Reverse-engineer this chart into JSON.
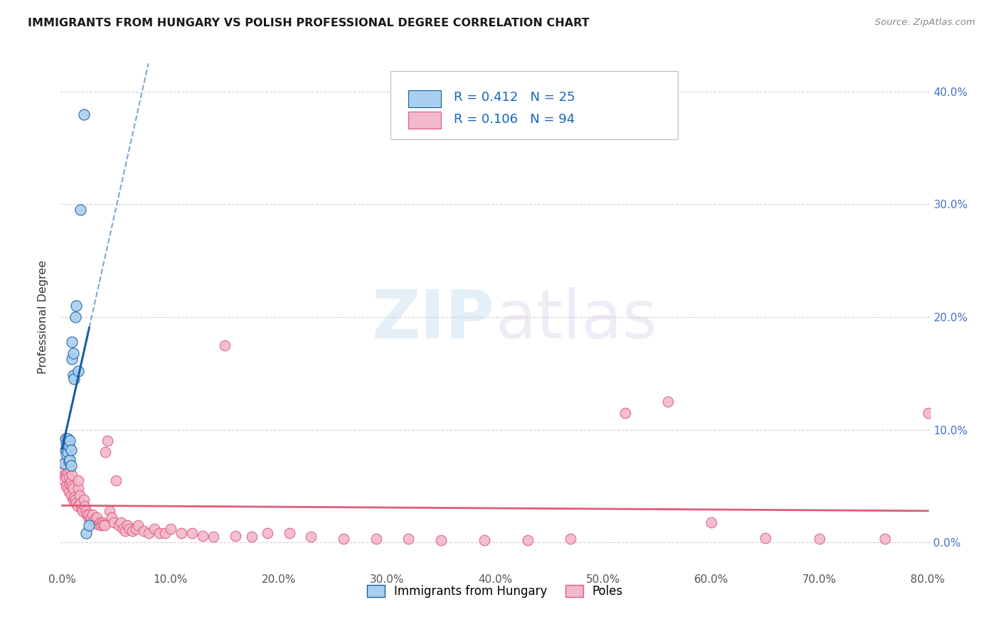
{
  "title": "IMMIGRANTS FROM HUNGARY VS POLISH PROFESSIONAL DEGREE CORRELATION CHART",
  "source": "Source: ZipAtlas.com",
  "ylabel": "Professional Degree",
  "legend_label1": "Immigrants from Hungary",
  "legend_label2": "Poles",
  "R1": 0.412,
  "N1": 25,
  "R2": 0.106,
  "N2": 94,
  "xlim": [
    -0.002,
    0.802
  ],
  "ylim": [
    -0.025,
    0.425
  ],
  "xticks": [
    0.0,
    0.1,
    0.2,
    0.3,
    0.4,
    0.5,
    0.6,
    0.7,
    0.8
  ],
  "yticks": [
    0.0,
    0.1,
    0.2,
    0.3,
    0.4
  ],
  "color_hungary": "#A8CFEF",
  "color_poles": "#F2B8CB",
  "color_trendline_hungary": "#1A5DA6",
  "color_trendline_poles": "#E05A7A",
  "background_color": "#FFFFFF",
  "hungary_x": [
    0.002,
    0.003,
    0.003,
    0.004,
    0.004,
    0.005,
    0.005,
    0.006,
    0.006,
    0.007,
    0.007,
    0.008,
    0.008,
    0.009,
    0.009,
    0.01,
    0.01,
    0.011,
    0.012,
    0.013,
    0.015,
    0.017,
    0.02,
    0.022,
    0.025
  ],
  "hungary_y": [
    0.07,
    0.082,
    0.092,
    0.078,
    0.088,
    0.08,
    0.092,
    0.072,
    0.085,
    0.073,
    0.09,
    0.068,
    0.082,
    0.163,
    0.178,
    0.148,
    0.168,
    0.145,
    0.2,
    0.21,
    0.152,
    0.295,
    0.38,
    0.008,
    0.015
  ],
  "poles_x": [
    0.001,
    0.001,
    0.002,
    0.002,
    0.003,
    0.003,
    0.004,
    0.004,
    0.005,
    0.005,
    0.006,
    0.006,
    0.007,
    0.007,
    0.008,
    0.008,
    0.009,
    0.009,
    0.01,
    0.01,
    0.011,
    0.012,
    0.013,
    0.014,
    0.015,
    0.015,
    0.016,
    0.017,
    0.018,
    0.019,
    0.02,
    0.021,
    0.022,
    0.023,
    0.024,
    0.025,
    0.026,
    0.027,
    0.028,
    0.029,
    0.03,
    0.031,
    0.032,
    0.033,
    0.035,
    0.036,
    0.037,
    0.038,
    0.039,
    0.04,
    0.042,
    0.044,
    0.046,
    0.048,
    0.05,
    0.052,
    0.054,
    0.056,
    0.058,
    0.06,
    0.062,
    0.065,
    0.068,
    0.07,
    0.075,
    0.08,
    0.085,
    0.09,
    0.095,
    0.1,
    0.11,
    0.12,
    0.13,
    0.14,
    0.15,
    0.16,
    0.175,
    0.19,
    0.21,
    0.23,
    0.26,
    0.29,
    0.32,
    0.35,
    0.39,
    0.43,
    0.47,
    0.52,
    0.56,
    0.6,
    0.65,
    0.7,
    0.76,
    0.8
  ],
  "poles_y": [
    0.06,
    0.065,
    0.055,
    0.07,
    0.06,
    0.072,
    0.05,
    0.058,
    0.048,
    0.062,
    0.045,
    0.058,
    0.052,
    0.065,
    0.042,
    0.055,
    0.05,
    0.06,
    0.038,
    0.048,
    0.04,
    0.038,
    0.035,
    0.032,
    0.048,
    0.055,
    0.042,
    0.035,
    0.03,
    0.028,
    0.038,
    0.032,
    0.028,
    0.025,
    0.022,
    0.025,
    0.02,
    0.022,
    0.025,
    0.018,
    0.02,
    0.018,
    0.022,
    0.016,
    0.018,
    0.015,
    0.018,
    0.016,
    0.015,
    0.08,
    0.09,
    0.028,
    0.022,
    0.018,
    0.055,
    0.015,
    0.018,
    0.012,
    0.01,
    0.015,
    0.012,
    0.01,
    0.012,
    0.015,
    0.01,
    0.008,
    0.012,
    0.008,
    0.008,
    0.012,
    0.008,
    0.008,
    0.006,
    0.005,
    0.175,
    0.006,
    0.005,
    0.008,
    0.008,
    0.005,
    0.003,
    0.003,
    0.003,
    0.002,
    0.002,
    0.002,
    0.003,
    0.115,
    0.125,
    0.018,
    0.004,
    0.003,
    0.003,
    0.115
  ]
}
